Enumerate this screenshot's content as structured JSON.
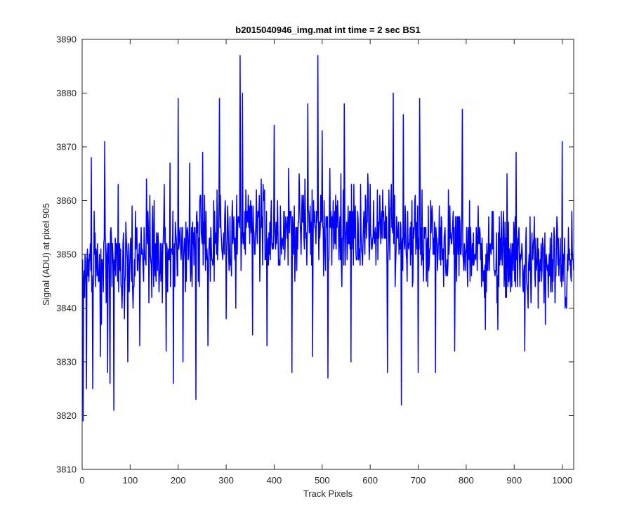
{
  "chart_data": {
    "type": "line",
    "title": "b2015040946_img.mat int time = 2 sec   BS1",
    "xlabel": "Track Pixels",
    "ylabel": "Signal (ADU) at pixel 905",
    "xlim": [
      0,
      1024
    ],
    "ylim": [
      3810,
      3890
    ],
    "xticks": [
      0,
      100,
      200,
      300,
      400,
      500,
      600,
      700,
      800,
      900,
      1000
    ],
    "yticks": [
      3810,
      3820,
      3830,
      3840,
      3850,
      3860,
      3870,
      3880,
      3890
    ],
    "grid": false,
    "line_color": "#0000ff",
    "series": [
      {
        "x_start": 1,
        "x_step": 1,
        "length": 1024,
        "approximate": true,
        "description_points": [
          [
            2,
            3819
          ],
          [
            5,
            3842
          ],
          [
            9,
            3825
          ],
          [
            14,
            3845
          ],
          [
            19,
            3868
          ],
          [
            22,
            3825
          ],
          [
            30,
            3850
          ],
          [
            38,
            3831
          ],
          [
            47,
            3871
          ],
          [
            53,
            3828
          ],
          [
            58,
            3826
          ],
          [
            66,
            3821
          ],
          [
            75,
            3863
          ],
          [
            88,
            3838
          ],
          [
            95,
            3830
          ],
          [
            120,
            3833
          ],
          [
            134,
            3864
          ],
          [
            175,
            3832
          ],
          [
            183,
            3867
          ],
          [
            190,
            3826
          ],
          [
            200,
            3879
          ],
          [
            210,
            3830
          ],
          [
            224,
            3867
          ],
          [
            237,
            3823
          ],
          [
            251,
            3869
          ],
          [
            262,
            3833
          ],
          [
            286,
            3879
          ],
          [
            300,
            3838
          ],
          [
            320,
            3840
          ],
          [
            329,
            3887
          ],
          [
            334,
            3880
          ],
          [
            355,
            3835
          ],
          [
            373,
            3864
          ],
          [
            385,
            3833
          ],
          [
            400,
            3874
          ],
          [
            430,
            3866
          ],
          [
            437,
            3828
          ],
          [
            470,
            3878
          ],
          [
            480,
            3831
          ],
          [
            491,
            3887
          ],
          [
            500,
            3873
          ],
          [
            512,
            3827
          ],
          [
            546,
            3878
          ],
          [
            560,
            3830
          ],
          [
            600,
            3863
          ],
          [
            636,
            3828
          ],
          [
            648,
            3880
          ],
          [
            665,
            3822
          ],
          [
            669,
            3876
          ],
          [
            700,
            3828
          ],
          [
            703,
            3879
          ],
          [
            736,
            3828
          ],
          [
            776,
            3832
          ],
          [
            792,
            3877
          ],
          [
            840,
            3836
          ],
          [
            866,
            3836
          ],
          [
            885,
            3865
          ],
          [
            904,
            3869
          ],
          [
            922,
            3832
          ],
          [
            965,
            3837
          ],
          [
            1000,
            3871
          ],
          [
            1010,
            3845
          ],
          [
            1020,
            3858
          ],
          [
            1024,
            3847
          ]
        ]
      }
    ]
  }
}
